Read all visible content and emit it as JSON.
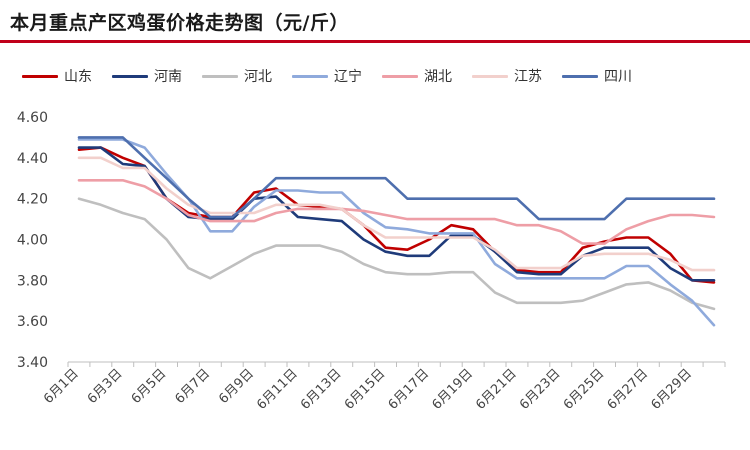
{
  "chart_data": {
    "type": "line",
    "title": "本月重点产区鸡蛋价格走势图（元/斤）",
    "xlabel": "",
    "ylabel": "",
    "ylim": [
      3.4,
      4.6
    ],
    "yticks": [
      "4.60",
      "4.40",
      "4.20",
      "4.00",
      "3.80",
      "3.60",
      "3.40"
    ],
    "grid": false,
    "legend": "top",
    "x": [
      "6月1日",
      "6月2日",
      "6月3日",
      "6月4日",
      "6月5日",
      "6月6日",
      "6月7日",
      "6月8日",
      "6月9日",
      "6月10日",
      "6月11日",
      "6月12日",
      "6月13日",
      "6月14日",
      "6月15日",
      "6月16日",
      "6月17日",
      "6月18日",
      "6月19日",
      "6月20日",
      "6月21日",
      "6月22日",
      "6月23日",
      "6月24日",
      "6月25日",
      "6月26日",
      "6月27日",
      "6月28日",
      "6月29日",
      "6月30日"
    ],
    "xtick_labels": [
      "6月1日",
      "6月3日",
      "6月5日",
      "6月7日",
      "6月9日",
      "6月11日",
      "6月13日",
      "6月15日",
      "6月17日",
      "6月19日",
      "6月21日",
      "6月23日",
      "6月25日",
      "6月27日",
      "6月29日"
    ],
    "series": [
      {
        "name": "山东",
        "color": "#c00000",
        "values": [
          4.44,
          4.45,
          4.4,
          4.36,
          4.2,
          4.13,
          4.11,
          4.11,
          4.23,
          4.25,
          4.17,
          4.16,
          4.15,
          4.07,
          3.96,
          3.95,
          4.0,
          4.07,
          4.05,
          3.94,
          3.85,
          3.84,
          3.84,
          3.96,
          3.99,
          4.01,
          4.01,
          3.93,
          3.8,
          3.79
        ]
      },
      {
        "name": "河南",
        "color": "#1f3b7a",
        "values": [
          4.45,
          4.45,
          4.37,
          4.36,
          4.2,
          4.11,
          4.1,
          4.1,
          4.2,
          4.21,
          4.11,
          4.1,
          4.09,
          4.0,
          3.94,
          3.92,
          3.92,
          4.02,
          4.02,
          3.94,
          3.84,
          3.83,
          3.83,
          3.92,
          3.96,
          3.96,
          3.96,
          3.86,
          3.8,
          3.8
        ]
      },
      {
        "name": "河北",
        "color": "#bfbfbf",
        "values": [
          4.2,
          4.17,
          4.13,
          4.1,
          4.0,
          3.86,
          3.81,
          3.87,
          3.93,
          3.97,
          3.97,
          3.97,
          3.94,
          3.88,
          3.84,
          3.83,
          3.83,
          3.84,
          3.84,
          3.74,
          3.69,
          3.69,
          3.69,
          3.7,
          3.74,
          3.78,
          3.79,
          3.75,
          3.69,
          3.66
        ]
      },
      {
        "name": "辽宁",
        "color": "#8faadc",
        "values": [
          4.49,
          4.49,
          4.49,
          4.45,
          4.32,
          4.2,
          4.04,
          4.04,
          4.16,
          4.24,
          4.24,
          4.23,
          4.23,
          4.13,
          4.06,
          4.05,
          4.03,
          4.03,
          4.03,
          3.88,
          3.81,
          3.81,
          3.81,
          3.81,
          3.81,
          3.87,
          3.87,
          3.78,
          3.7,
          3.58
        ]
      },
      {
        "name": "湖北",
        "color": "#ee9ea6",
        "values": [
          4.29,
          4.29,
          4.29,
          4.26,
          4.2,
          4.12,
          4.09,
          4.09,
          4.09,
          4.13,
          4.15,
          4.15,
          4.15,
          4.14,
          4.12,
          4.1,
          4.1,
          4.1,
          4.1,
          4.1,
          4.07,
          4.07,
          4.04,
          3.98,
          3.98,
          4.05,
          4.09,
          4.12,
          4.12,
          4.11
        ]
      },
      {
        "name": "江苏",
        "color": "#f2d0cc",
        "values": [
          4.4,
          4.4,
          4.35,
          4.35,
          4.25,
          4.17,
          4.13,
          4.13,
          4.13,
          4.17,
          4.17,
          4.17,
          4.15,
          4.07,
          4.01,
          4.01,
          4.01,
          4.01,
          4.01,
          3.95,
          3.86,
          3.86,
          3.86,
          3.92,
          3.93,
          3.93,
          3.93,
          3.9,
          3.85,
          3.85
        ]
      },
      {
        "name": "四川",
        "color": "#4e6fae",
        "values": [
          4.5,
          4.5,
          4.5,
          4.4,
          4.3,
          4.2,
          4.11,
          4.11,
          4.2,
          4.3,
          4.3,
          4.3,
          4.3,
          4.3,
          4.3,
          4.2,
          4.2,
          4.2,
          4.2,
          4.2,
          4.2,
          4.1,
          4.1,
          4.1,
          4.1,
          4.2,
          4.2,
          4.2,
          4.2,
          4.2
        ]
      }
    ]
  }
}
